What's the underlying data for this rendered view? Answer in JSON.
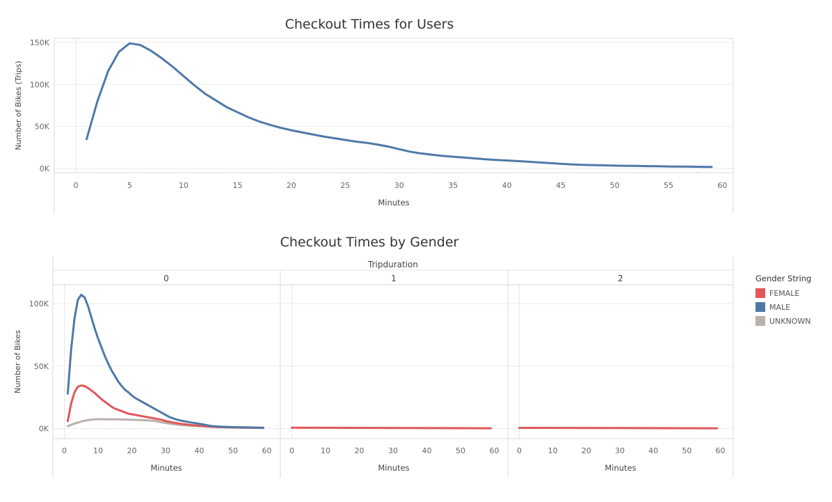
{
  "colors": {
    "female": "#e15759",
    "male": "#4e79a7",
    "unknown": "#bab0ac"
  },
  "legend": {
    "title": "Gender String",
    "items": [
      {
        "label": "FEMALE",
        "color": "#e15759"
      },
      {
        "label": "MALE",
        "color": "#4e79a7"
      },
      {
        "label": "UNKNOWN",
        "color": "#bab0ac"
      }
    ]
  },
  "chart_data": [
    {
      "type": "line",
      "title": "Checkout Times for Users",
      "xlabel": "Minutes",
      "ylabel": "Number of Bikes (Trips)",
      "xlim": [
        -2,
        61
      ],
      "ylim": [
        -5000,
        155000
      ],
      "x_ticks": [
        0,
        5,
        10,
        15,
        20,
        25,
        30,
        35,
        40,
        45,
        50,
        55,
        60
      ],
      "y_ticks": [
        0,
        50000,
        100000,
        150000
      ],
      "y_tick_labels": [
        "0K",
        "50K",
        "100K",
        "150K"
      ],
      "series": [
        {
          "color": "#4e79a7",
          "x": [
            1,
            2,
            3,
            4,
            5,
            6,
            7,
            8,
            9,
            10,
            11,
            12,
            13,
            14,
            15,
            16,
            17,
            18,
            19,
            20,
            21,
            22,
            23,
            24,
            25,
            26,
            27,
            28,
            29,
            30,
            31,
            32,
            33,
            34,
            35,
            36,
            37,
            38,
            39,
            40,
            41,
            42,
            43,
            44,
            45,
            46,
            47,
            48,
            49,
            50,
            51,
            52,
            53,
            54,
            55,
            56,
            57,
            58,
            59
          ],
          "y": [
            35000,
            80000,
            116000,
            139000,
            149000,
            147000,
            140000,
            131000,
            121000,
            110000,
            99000,
            89000,
            81000,
            73000,
            67000,
            61000,
            56000,
            52000,
            48500,
            45500,
            43000,
            40500,
            38000,
            36000,
            34000,
            32000,
            30500,
            28500,
            26000,
            23000,
            20000,
            18000,
            16500,
            15000,
            14000,
            13000,
            12000,
            11000,
            10200,
            9500,
            8800,
            8000,
            7200,
            6400,
            5600,
            4900,
            4400,
            4000,
            3700,
            3400,
            3200,
            3000,
            2800,
            2600,
            2400,
            2200,
            2100,
            2000,
            1800
          ]
        }
      ]
    },
    {
      "type": "line",
      "title": "Checkout Times by Gender",
      "header": "Tripduration",
      "panels": [
        "0",
        "1",
        "2"
      ],
      "xlabel": "Minutes",
      "ylabel": "Number of Bikes",
      "xlim": [
        -3,
        63
      ],
      "ylim": [
        -8000,
        115000
      ],
      "x_ticks": [
        0,
        10,
        20,
        30,
        40,
        50,
        60
      ],
      "y_ticks": [
        0,
        50000,
        100000
      ],
      "y_tick_labels": [
        "0K",
        "50K",
        "100K"
      ],
      "panel_series": [
        [
          {
            "name": "UNKNOWN",
            "color": "#bab0ac",
            "x": [
              1,
              3,
              5,
              7,
              9,
              11,
              13,
              15,
              17,
              19,
              21,
              23,
              25,
              27,
              29,
              31,
              33,
              35,
              37,
              39,
              41,
              43,
              45,
              47,
              49,
              51,
              53,
              55,
              57,
              59
            ],
            "y": [
              2000,
              4000,
              5700,
              6800,
              7400,
              7600,
              7500,
              7400,
              7300,
              7200,
              7000,
              6800,
              6500,
              6000,
              5000,
              4000,
              3300,
              2800,
              2400,
              2100,
              1800,
              1500,
              1300,
              1100,
              1000,
              900,
              800,
              700,
              650,
              600
            ]
          },
          {
            "name": "FEMALE",
            "color": "#e15759",
            "x": [
              1,
              2,
              3,
              4,
              5,
              6,
              7,
              8,
              9,
              10,
              11,
              12,
              13,
              14,
              15,
              16,
              17,
              18,
              19,
              20,
              21,
              22,
              23,
              24,
              25,
              26,
              27,
              28,
              29,
              30,
              31,
              32,
              33,
              34,
              35,
              36,
              37,
              38,
              39,
              40,
              41,
              42,
              43,
              44,
              45,
              46,
              47,
              48,
              49,
              50,
              51,
              52,
              53,
              54,
              55,
              56,
              57,
              58,
              59
            ],
            "y": [
              6000,
              20000,
              29000,
              33500,
              34500,
              34000,
              32500,
              30500,
              28500,
              26000,
              23500,
              21500,
              19500,
              17500,
              16000,
              15000,
              14000,
              13000,
              12000,
              11500,
              11000,
              10500,
              10000,
              9500,
              9000,
              8500,
              8000,
              7500,
              7000,
              6000,
              5500,
              5000,
              4500,
              4000,
              3700,
              3400,
              3100,
              2800,
              2500,
              2300,
              2100,
              1900,
              1700,
              1500,
              1400,
              1300,
              1200,
              1100,
              1050,
              1000,
              950,
              900,
              850,
              800,
              750,
              700,
              650,
              600,
              550
            ]
          },
          {
            "name": "MALE",
            "color": "#4e79a7",
            "x": [
              1,
              2,
              3,
              4,
              5,
              6,
              7,
              8,
              9,
              10,
              11,
              12,
              13,
              14,
              15,
              16,
              17,
              18,
              19,
              20,
              21,
              22,
              23,
              24,
              25,
              26,
              27,
              28,
              29,
              30,
              31,
              32,
              33,
              34,
              35,
              36,
              37,
              38,
              39,
              40,
              41,
              42,
              43,
              44,
              45,
              46,
              47,
              48,
              49,
              50,
              51,
              52,
              53,
              54,
              55,
              56,
              57,
              58,
              59
            ],
            "y": [
              28000,
              63000,
              88000,
              103000,
              107000,
              105000,
              98000,
              89000,
              80000,
              72000,
              65000,
              58000,
              52000,
              46500,
              42000,
              37500,
              34000,
              31000,
              29000,
              26500,
              24500,
              23000,
              21500,
              20000,
              18500,
              17000,
              15500,
              14000,
              12500,
              11000,
              9500,
              8500,
              7500,
              6800,
              6200,
              5700,
              5200,
              4700,
              4300,
              3900,
              3400,
              2900,
              2400,
              2000,
              1800,
              1600,
              1500,
              1400,
              1300,
              1200,
              1150,
              1100,
              1050,
              1000,
              950,
              900,
              850,
              800,
              750
            ]
          }
        ],
        [
          {
            "name": "FEMALE",
            "color": "#e15759",
            "x": [
              0,
              59
            ],
            "y": [
              800,
              300
            ]
          }
        ],
        [
          {
            "name": "FEMALE",
            "color": "#e15759",
            "x": [
              0,
              59
            ],
            "y": [
              600,
              300
            ]
          }
        ]
      ]
    }
  ]
}
